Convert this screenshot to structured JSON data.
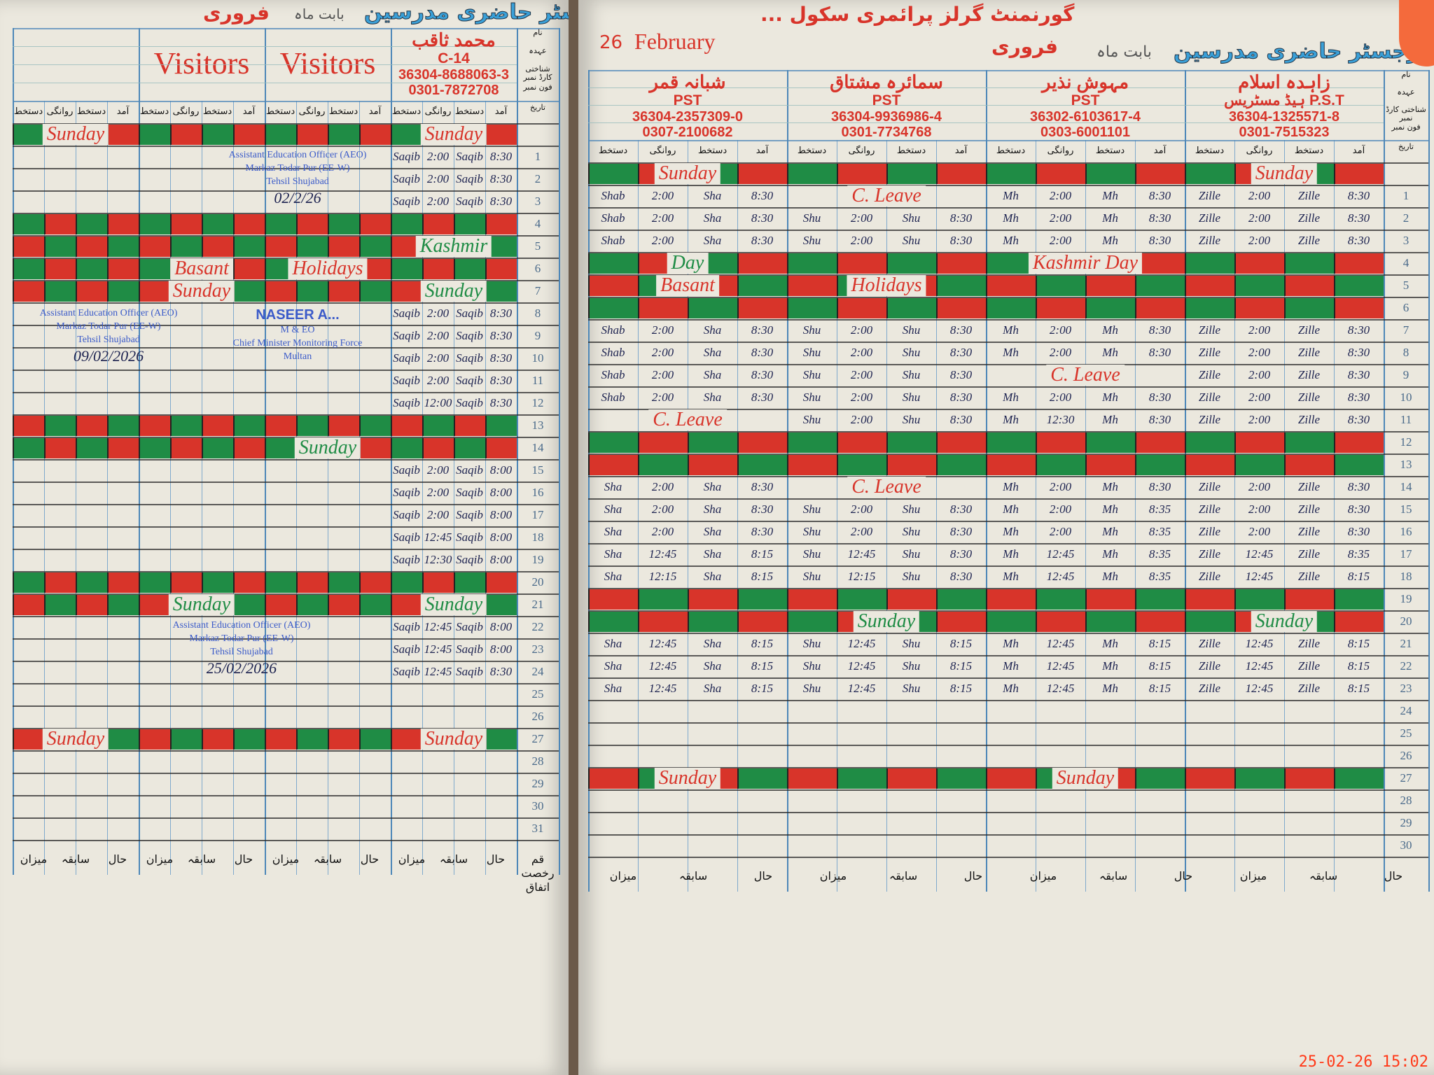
{
  "colors": {
    "red": "#d8342a",
    "green": "#1f8c45",
    "ink": "#1d2350",
    "stamp": "#3b5bc9"
  },
  "column_headers": [
    "دستخط",
    "روانگی",
    "دستخط",
    "آمد"
  ],
  "row_headers": [
    "نام",
    "عہدہ",
    "شناختی کارڈ نمبر",
    "فون نمبر",
    "تاریخ"
  ],
  "left_page": {
    "register_title": "رجسٹر حاضری مدرسین",
    "month_label": "بابت ماہ",
    "month_value": "فروری",
    "visitors": [
      "Visitors",
      "Visitors"
    ],
    "people": [
      null,
      null,
      null,
      {
        "name": "محمد ثاقب",
        "designation": "C-14",
        "cnic": "36304-8688063-3",
        "phone": "0301-7872708"
      }
    ],
    "dates": [
      "",
      "1",
      "2",
      "3",
      "4",
      "5",
      "6",
      "7",
      "8",
      "9",
      "10",
      "11",
      "12",
      "13",
      "14",
      "15",
      "16",
      "17",
      "18",
      "19",
      "20",
      "21",
      "22",
      "23",
      "24",
      "25",
      "26",
      "27",
      "28",
      "29",
      "30",
      "31"
    ],
    "rows": [
      {
        "h": 1,
        "labels": [
          {
            "text": "Sunday",
            "g": 0,
            "c": "red"
          },
          {
            "text": "Sunday",
            "g": 3,
            "c": "red"
          }
        ]
      },
      {
        "g": [
          null,
          null,
          null,
          [
            "Saqib",
            "2:00",
            "Saqib",
            "8:30"
          ]
        ]
      },
      {
        "g": [
          null,
          null,
          null,
          [
            "Saqib",
            "2:00",
            "Saqib",
            "8:30"
          ]
        ]
      },
      {
        "g": [
          null,
          null,
          null,
          [
            "Saqib",
            "2:00",
            "Saqib",
            "8:30"
          ]
        ]
      },
      {
        "h": 1
      },
      {
        "h": 1,
        "labels": [
          {
            "text": "Kashmir",
            "g": 3,
            "c": "green"
          }
        ]
      },
      {
        "h": 1,
        "labels": [
          {
            "text": "Basant",
            "g": 1,
            "c": "red"
          },
          {
            "text": "Holidays",
            "g": 2,
            "c": "red"
          }
        ]
      },
      {
        "h": 1,
        "labels": [
          {
            "text": "Sunday",
            "g": 1,
            "c": "red"
          },
          {
            "text": "Sunday",
            "g": 3,
            "c": "green"
          }
        ]
      },
      {
        "g": [
          null,
          null,
          null,
          [
            "Saqib",
            "2:00",
            "Saqib",
            "8:30"
          ]
        ]
      },
      {
        "g": [
          null,
          null,
          null,
          [
            "Saqib",
            "2:00",
            "Saqib",
            "8:30"
          ]
        ]
      },
      {
        "g": [
          null,
          null,
          null,
          [
            "Saqib",
            "2:00",
            "Saqib",
            "8:30"
          ]
        ]
      },
      {
        "g": [
          null,
          null,
          null,
          [
            "Saqib",
            "2:00",
            "Saqib",
            "8:30"
          ]
        ]
      },
      {
        "g": [
          null,
          null,
          null,
          [
            "Saqib",
            "12:00",
            "Saqib",
            "8:30"
          ]
        ]
      },
      {
        "h": 1
      },
      {
        "h": 1,
        "labels": [
          {
            "text": "Sunday",
            "g": 2,
            "c": "green"
          }
        ]
      },
      {
        "g": [
          null,
          null,
          null,
          [
            "Saqib",
            "2:00",
            "Saqib",
            "8:00"
          ]
        ]
      },
      {
        "g": [
          null,
          null,
          null,
          [
            "Saqib",
            "2:00",
            "Saqib",
            "8:00"
          ]
        ]
      },
      {
        "g": [
          null,
          null,
          null,
          [
            "Saqib",
            "2:00",
            "Saqib",
            "8:00"
          ]
        ]
      },
      {
        "g": [
          null,
          null,
          null,
          [
            "Saqib",
            "12:45",
            "Saqib",
            "8:00"
          ]
        ]
      },
      {
        "g": [
          null,
          null,
          null,
          [
            "Saqib",
            "12:30",
            "Saqib",
            "8:00"
          ]
        ]
      },
      {
        "h": 1
      },
      {
        "h": 1,
        "labels": [
          {
            "text": "Sunday",
            "g": 1,
            "c": "green"
          },
          {
            "text": "Sunday",
            "g": 3,
            "c": "green"
          }
        ]
      },
      {
        "g": [
          null,
          null,
          null,
          [
            "Saqib",
            "12:45",
            "Saqib",
            "8:00"
          ]
        ]
      },
      {
        "g": [
          null,
          null,
          null,
          [
            "Saqib",
            "12:45",
            "Saqib",
            "8:00"
          ]
        ]
      },
      {
        "g": [
          null,
          null,
          null,
          [
            "Saqib",
            "12:45",
            "Saqib",
            "8:30"
          ]
        ]
      },
      {},
      {},
      {
        "h": 1,
        "labels": [
          {
            "text": "Sunday",
            "g": 0,
            "c": "red"
          },
          {
            "text": "Sunday",
            "g": 3,
            "c": "red"
          }
        ]
      },
      {},
      {},
      {},
      {}
    ],
    "stamps": [
      {
        "lines": [
          "Assistant Education Officer (AEO)",
          "Markaz Todar Pur (EE-W)",
          "Tehsil Shujabad"
        ],
        "date": "02/2/26"
      },
      {
        "lines": [
          "Assistant Education Officer (AEO)",
          "Markaz Todar Pur (EE-W)",
          "Tehsil Shujabad"
        ],
        "date": "09/02/2026"
      },
      {
        "lines": [
          "NASEER A...",
          "M & EO",
          "Chief Minister Monitoring Force",
          "Multan"
        ],
        "date": ""
      },
      {
        "lines": [
          "Assistant Education Officer (AEO)",
          "Markaz Todar Pur (EE-W)",
          "Tehsil Shujabad"
        ],
        "date": "25/02/2026"
      }
    ],
    "footer": [
      "میزان",
      "سابقہ",
      "حال",
      "میزان",
      "سابقہ",
      "حال",
      "میزان",
      "سابقہ",
      "حال",
      "میزان",
      "سابقہ",
      "حال",
      "قم رخصت اتفاق"
    ]
  },
  "right_page": {
    "register_title": "رجسٹر حاضری مدرسین",
    "month_label": "بابت ماہ",
    "month_value": "فروری",
    "month_english": "February",
    "year": "26",
    "school_name": "گورنمنٹ گرلز پرائمری سکول ...",
    "people": [
      {
        "name": "شبانہ قمر",
        "designation": "PST",
        "cnic": "36304-2357309-0",
        "phone": "0307-2100682"
      },
      {
        "name": "سمائرہ مشتاق",
        "designation": "PST",
        "cnic": "36304-9936986-4",
        "phone": "0301-7734768"
      },
      {
        "name": "مہوش نذیر",
        "designation": "PST",
        "cnic": "36302-6103617-4",
        "phone": "0303-6001101"
      },
      {
        "name": "زاہدہ اسلام",
        "designation": "ہیڈ مسٹریس P.S.T",
        "cnic": "36304-1325571-8",
        "phone": "0301-7515323"
      }
    ],
    "dates": [
      "",
      "1",
      "2",
      "3",
      "4",
      "5",
      "6",
      "7",
      "8",
      "9",
      "10",
      "11",
      "12",
      "13",
      "14",
      "15",
      "16",
      "17",
      "18",
      "19",
      "20",
      "21",
      "22",
      "23",
      "24",
      "25",
      "26",
      "27",
      "28",
      "29",
      "30"
    ],
    "rows": [
      {
        "h": 1,
        "labels": [
          {
            "text": "Sunday",
            "g": 0,
            "c": "red"
          },
          {
            "text": "Sunday",
            "g": 3,
            "c": "red"
          }
        ]
      },
      {
        "g": [
          [
            "Shab",
            "2:00",
            "Sha",
            "8:30"
          ],
          null,
          [
            "Mh",
            "2:00",
            "Mh",
            "8:30"
          ],
          [
            "Zille",
            "2:00",
            "Zille",
            "8:30"
          ]
        ],
        "notes": [
          {
            "text": "C. Leave",
            "g": 1
          }
        ]
      },
      {
        "g": [
          [
            "Shab",
            "2:00",
            "Sha",
            "8:30"
          ],
          [
            "Shu",
            "2:00",
            "Shu",
            "8:30"
          ],
          [
            "Mh",
            "2:00",
            "Mh",
            "8:30"
          ],
          [
            "Zille",
            "2:00",
            "Zille",
            "8:30"
          ]
        ]
      },
      {
        "g": [
          [
            "Shab",
            "2:00",
            "Sha",
            "8:30"
          ],
          [
            "Shu",
            "2:00",
            "Shu",
            "8:30"
          ],
          [
            "Mh",
            "2:00",
            "Mh",
            "8:30"
          ],
          [
            "Zille",
            "2:00",
            "Zille",
            "8:30"
          ]
        ]
      },
      {
        "h": 1,
        "labels": [
          {
            "text": "Day",
            "g": 0,
            "c": "green"
          },
          {
            "text": "Kashmir Day",
            "g": 2,
            "c": "red"
          }
        ]
      },
      {
        "h": 1,
        "labels": [
          {
            "text": "Basant",
            "g": 0,
            "c": "red"
          },
          {
            "text": "Holidays",
            "g": 1,
            "c": "red"
          }
        ]
      },
      {
        "h": 1
      },
      {
        "g": [
          [
            "Shab",
            "2:00",
            "Sha",
            "8:30"
          ],
          [
            "Shu",
            "2:00",
            "Shu",
            "8:30"
          ],
          [
            "Mh",
            "2:00",
            "Mh",
            "8:30"
          ],
          [
            "Zille",
            "2:00",
            "Zille",
            "8:30"
          ]
        ]
      },
      {
        "g": [
          [
            "Shab",
            "2:00",
            "Sha",
            "8:30"
          ],
          [
            "Shu",
            "2:00",
            "Shu",
            "8:30"
          ],
          [
            "Mh",
            "2:00",
            "Mh",
            "8:30"
          ],
          [
            "Zille",
            "2:00",
            "Zille",
            "8:30"
          ]
        ]
      },
      {
        "g": [
          [
            "Shab",
            "2:00",
            "Sha",
            "8:30"
          ],
          [
            "Shu",
            "2:00",
            "Shu",
            "8:30"
          ],
          null,
          [
            "Zille",
            "2:00",
            "Zille",
            "8:30"
          ]
        ],
        "notes": [
          {
            "text": "C. Leave",
            "g": 2
          }
        ]
      },
      {
        "g": [
          [
            "Shab",
            "2:00",
            "Sha",
            "8:30"
          ],
          [
            "Shu",
            "2:00",
            "Shu",
            "8:30"
          ],
          [
            "Mh",
            "2:00",
            "Mh",
            "8:30"
          ],
          [
            "Zille",
            "2:00",
            "Zille",
            "8:30"
          ]
        ]
      },
      {
        "g": [
          null,
          [
            "Shu",
            "2:00",
            "Shu",
            "8:30"
          ],
          [
            "Mh",
            "12:30",
            "Mh",
            "8:30"
          ],
          [
            "Zille",
            "2:00",
            "Zille",
            "8:30"
          ]
        ],
        "notes": [
          {
            "text": "C. Leave",
            "g": 0
          }
        ]
      },
      {
        "h": 1
      },
      {
        "h": 1
      },
      {
        "g": [
          [
            "Sha",
            "2:00",
            "Sha",
            "8:30"
          ],
          null,
          [
            "Mh",
            "2:00",
            "Mh",
            "8:30"
          ],
          [
            "Zille",
            "2:00",
            "Zille",
            "8:30"
          ]
        ],
        "notes": [
          {
            "text": "C. Leave",
            "g": 1
          }
        ]
      },
      {
        "g": [
          [
            "Sha",
            "2:00",
            "Sha",
            "8:30"
          ],
          [
            "Shu",
            "2:00",
            "Shu",
            "8:30"
          ],
          [
            "Mh",
            "2:00",
            "Mh",
            "8:35"
          ],
          [
            "Zille",
            "2:00",
            "Zille",
            "8:30"
          ]
        ]
      },
      {
        "g": [
          [
            "Sha",
            "2:00",
            "Sha",
            "8:30"
          ],
          [
            "Shu",
            "2:00",
            "Shu",
            "8:30"
          ],
          [
            "Mh",
            "2:00",
            "Mh",
            "8:35"
          ],
          [
            "Zille",
            "2:00",
            "Zille",
            "8:30"
          ]
        ]
      },
      {
        "g": [
          [
            "Sha",
            "12:45",
            "Sha",
            "8:15"
          ],
          [
            "Shu",
            "12:45",
            "Shu",
            "8:30"
          ],
          [
            "Mh",
            "12:45",
            "Mh",
            "8:35"
          ],
          [
            "Zille",
            "12:45",
            "Zille",
            "8:35"
          ]
        ]
      },
      {
        "g": [
          [
            "Sha",
            "12:15",
            "Sha",
            "8:15"
          ],
          [
            "Shu",
            "12:15",
            "Shu",
            "8:30"
          ],
          [
            "Mh",
            "12:45",
            "Mh",
            "8:35"
          ],
          [
            "Zille",
            "12:45",
            "Zille",
            "8:15"
          ]
        ]
      },
      {
        "h": 1
      },
      {
        "h": 1,
        "labels": [
          {
            "text": "Sunday",
            "g": 1,
            "c": "green"
          },
          {
            "text": "Sunday",
            "g": 3,
            "c": "green"
          }
        ]
      },
      {
        "g": [
          [
            "Sha",
            "12:45",
            "Sha",
            "8:15"
          ],
          [
            "Shu",
            "12:45",
            "Shu",
            "8:15"
          ],
          [
            "Mh",
            "12:45",
            "Mh",
            "8:15"
          ],
          [
            "Zille",
            "12:45",
            "Zille",
            "8:15"
          ]
        ]
      },
      {
        "g": [
          [
            "Sha",
            "12:45",
            "Sha",
            "8:15"
          ],
          [
            "Shu",
            "12:45",
            "Shu",
            "8:15"
          ],
          [
            "Mh",
            "12:45",
            "Mh",
            "8:15"
          ],
          [
            "Zille",
            "12:45",
            "Zille",
            "8:15"
          ]
        ]
      },
      {
        "g": [
          [
            "Sha",
            "12:45",
            "Sha",
            "8:15"
          ],
          [
            "Shu",
            "12:45",
            "Shu",
            "8:15"
          ],
          [
            "Mh",
            "12:45",
            "Mh",
            "8:15"
          ],
          [
            "Zille",
            "12:45",
            "Zille",
            "8:15"
          ]
        ]
      },
      {},
      {},
      {},
      {
        "h": 1,
        "labels": [
          {
            "text": "Sunday",
            "g": 0,
            "c": "red"
          },
          {
            "text": "Sunday",
            "g": 2,
            "c": "red"
          }
        ]
      },
      {},
      {},
      {}
    ],
    "footer": [
      "میزان",
      "سابقہ",
      "حال",
      "میزان",
      "سابقہ",
      "حال",
      "میزان",
      "سابقہ",
      "حال",
      "میزان",
      "سابقہ",
      "حال"
    ]
  },
  "timestamp": "25-02-26  15:02"
}
